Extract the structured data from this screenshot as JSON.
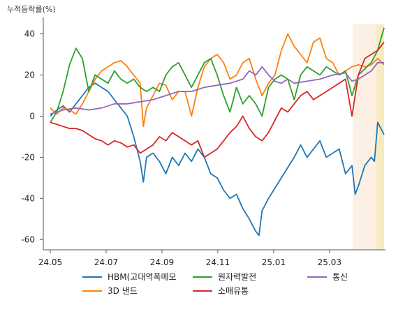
{
  "chart_data": {
    "type": "line",
    "ylabel": "누적등락률(%)",
    "ylim": [
      -65,
      48
    ],
    "yticks": [
      -60,
      -40,
      -20,
      0,
      20,
      40
    ],
    "xlim": [
      0,
      52
    ],
    "xticks": [
      {
        "label": "24.05",
        "x": 0
      },
      {
        "label": "24.07",
        "x": 8.7
      },
      {
        "label": "24.09",
        "x": 17.4
      },
      {
        "label": "24.11",
        "x": 26.1
      },
      {
        "label": "25.01",
        "x": 34.8
      },
      {
        "label": "25.03",
        "x": 43.5
      }
    ],
    "highlights": [
      {
        "from": 47.1,
        "to": 52.0,
        "color": "#f7e1c8",
        "opacity": 0.5
      },
      {
        "from": 50.8,
        "to": 52.0,
        "color": "#f3e7a6",
        "opacity": 0.55
      }
    ],
    "grid": false,
    "legend_position": "bottom",
    "series": [
      {
        "name": "HBM(고대역폭메모",
        "color": "#1f77b4",
        "points": [
          [
            0,
            0
          ],
          [
            1,
            3
          ],
          [
            2,
            5
          ],
          [
            3,
            2
          ],
          [
            4,
            6
          ],
          [
            5,
            10
          ],
          [
            6,
            14
          ],
          [
            7,
            16
          ],
          [
            8,
            14
          ],
          [
            9,
            12
          ],
          [
            10,
            8
          ],
          [
            11,
            4
          ],
          [
            12,
            0
          ],
          [
            13,
            -10
          ],
          [
            14,
            -22
          ],
          [
            14.5,
            -32
          ],
          [
            15,
            -20
          ],
          [
            16,
            -18
          ],
          [
            17,
            -22
          ],
          [
            18,
            -28
          ],
          [
            19,
            -20
          ],
          [
            20,
            -24
          ],
          [
            21,
            -18
          ],
          [
            22,
            -22
          ],
          [
            23,
            -16
          ],
          [
            24,
            -20
          ],
          [
            25,
            -28
          ],
          [
            26,
            -30
          ],
          [
            27,
            -36
          ],
          [
            28,
            -40
          ],
          [
            29,
            -38
          ],
          [
            30,
            -45
          ],
          [
            31,
            -50
          ],
          [
            32,
            -56
          ],
          [
            32.5,
            -58
          ],
          [
            33,
            -46
          ],
          [
            34,
            -40
          ],
          [
            35,
            -35
          ],
          [
            36,
            -30
          ],
          [
            37,
            -25
          ],
          [
            38,
            -20
          ],
          [
            39,
            -14
          ],
          [
            40,
            -20
          ],
          [
            41,
            -16
          ],
          [
            42,
            -12
          ],
          [
            43,
            -20
          ],
          [
            44,
            -18
          ],
          [
            45,
            -16
          ],
          [
            46,
            -28
          ],
          [
            47,
            -24
          ],
          [
            47.5,
            -38
          ],
          [
            48,
            -34
          ],
          [
            49,
            -24
          ],
          [
            50,
            -20
          ],
          [
            50.5,
            -22
          ],
          [
            51,
            -3
          ],
          [
            52,
            -9
          ]
        ]
      },
      {
        "name": "3D 낸드",
        "color": "#ff7f0e",
        "points": [
          [
            0,
            4
          ],
          [
            1,
            1
          ],
          [
            2,
            4
          ],
          [
            3,
            3
          ],
          [
            4,
            1
          ],
          [
            5,
            6
          ],
          [
            6,
            12
          ],
          [
            7,
            18
          ],
          [
            8,
            22
          ],
          [
            9,
            24
          ],
          [
            10,
            26
          ],
          [
            11,
            27
          ],
          [
            12,
            24
          ],
          [
            13,
            20
          ],
          [
            14,
            16
          ],
          [
            14.5,
            -5
          ],
          [
            15,
            4
          ],
          [
            16,
            10
          ],
          [
            17,
            16
          ],
          [
            18,
            15
          ],
          [
            19,
            8
          ],
          [
            20,
            12
          ],
          [
            21,
            12
          ],
          [
            22,
            0
          ],
          [
            23,
            14
          ],
          [
            24,
            24
          ],
          [
            25,
            28
          ],
          [
            26,
            30
          ],
          [
            27,
            26
          ],
          [
            28,
            18
          ],
          [
            29,
            20
          ],
          [
            30,
            26
          ],
          [
            31,
            28
          ],
          [
            32,
            18
          ],
          [
            33,
            10
          ],
          [
            34,
            16
          ],
          [
            35,
            20
          ],
          [
            36,
            32
          ],
          [
            37,
            40
          ],
          [
            38,
            34
          ],
          [
            39,
            30
          ],
          [
            40,
            26
          ],
          [
            41,
            36
          ],
          [
            42,
            38
          ],
          [
            43,
            28
          ],
          [
            44,
            26
          ],
          [
            45,
            20
          ],
          [
            46,
            22
          ],
          [
            47,
            24
          ],
          [
            48,
            25
          ],
          [
            49,
            24
          ],
          [
            50,
            25
          ],
          [
            51,
            28
          ],
          [
            52,
            25
          ]
        ]
      },
      {
        "name": "원자력발전",
        "color": "#2ca02c",
        "points": [
          [
            0,
            -3
          ],
          [
            1,
            2
          ],
          [
            2,
            12
          ],
          [
            3,
            25
          ],
          [
            4,
            33
          ],
          [
            5,
            28
          ],
          [
            6,
            12
          ],
          [
            7,
            20
          ],
          [
            8,
            18
          ],
          [
            9,
            16
          ],
          [
            10,
            22
          ],
          [
            11,
            18
          ],
          [
            12,
            16
          ],
          [
            13,
            18
          ],
          [
            14,
            14
          ],
          [
            15,
            12
          ],
          [
            16,
            14
          ],
          [
            17,
            12
          ],
          [
            18,
            20
          ],
          [
            19,
            24
          ],
          [
            20,
            26
          ],
          [
            21,
            20
          ],
          [
            22,
            14
          ],
          [
            23,
            20
          ],
          [
            24,
            26
          ],
          [
            25,
            28
          ],
          [
            26,
            20
          ],
          [
            27,
            10
          ],
          [
            28,
            2
          ],
          [
            29,
            14
          ],
          [
            30,
            6
          ],
          [
            31,
            10
          ],
          [
            32,
            6
          ],
          [
            33,
            0
          ],
          [
            34,
            14
          ],
          [
            35,
            18
          ],
          [
            36,
            20
          ],
          [
            37,
            18
          ],
          [
            38,
            8
          ],
          [
            39,
            20
          ],
          [
            40,
            24
          ],
          [
            41,
            22
          ],
          [
            42,
            20
          ],
          [
            43,
            24
          ],
          [
            44,
            22
          ],
          [
            45,
            20
          ],
          [
            46,
            22
          ],
          [
            47,
            10
          ],
          [
            48,
            20
          ],
          [
            49,
            23
          ],
          [
            50,
            26
          ],
          [
            51,
            32
          ],
          [
            52,
            43
          ]
        ]
      },
      {
        "name": "소매유통",
        "color": "#d62728",
        "points": [
          [
            0,
            -3
          ],
          [
            1,
            -4
          ],
          [
            2,
            -5
          ],
          [
            3,
            -6
          ],
          [
            4,
            -6
          ],
          [
            5,
            -7
          ],
          [
            6,
            -9
          ],
          [
            7,
            -11
          ],
          [
            8,
            -12
          ],
          [
            9,
            -14
          ],
          [
            10,
            -12
          ],
          [
            11,
            -13
          ],
          [
            12,
            -15
          ],
          [
            13,
            -14
          ],
          [
            14,
            -18
          ],
          [
            15,
            -16
          ],
          [
            16,
            -14
          ],
          [
            17,
            -10
          ],
          [
            18,
            -12
          ],
          [
            19,
            -8
          ],
          [
            20,
            -10
          ],
          [
            21,
            -12
          ],
          [
            22,
            -14
          ],
          [
            23,
            -12
          ],
          [
            24,
            -20
          ],
          [
            25,
            -18
          ],
          [
            26,
            -16
          ],
          [
            27,
            -12
          ],
          [
            28,
            -8
          ],
          [
            29,
            -5
          ],
          [
            30,
            0
          ],
          [
            31,
            -6
          ],
          [
            32,
            -10
          ],
          [
            33,
            -12
          ],
          [
            34,
            -8
          ],
          [
            35,
            -2
          ],
          [
            36,
            4
          ],
          [
            37,
            2
          ],
          [
            38,
            6
          ],
          [
            39,
            10
          ],
          [
            40,
            12
          ],
          [
            41,
            8
          ],
          [
            42,
            10
          ],
          [
            43,
            12
          ],
          [
            44,
            14
          ],
          [
            45,
            16
          ],
          [
            46,
            18
          ],
          [
            47,
            0
          ],
          [
            48,
            20
          ],
          [
            49,
            28
          ],
          [
            50,
            30
          ],
          [
            51,
            32
          ],
          [
            52,
            36
          ]
        ]
      },
      {
        "name": "통신",
        "color": "#9467bd",
        "points": [
          [
            0,
            1
          ],
          [
            2,
            3
          ],
          [
            4,
            4
          ],
          [
            6,
            3
          ],
          [
            8,
            4
          ],
          [
            10,
            6
          ],
          [
            12,
            6
          ],
          [
            14,
            7
          ],
          [
            16,
            8
          ],
          [
            18,
            10
          ],
          [
            20,
            12
          ],
          [
            22,
            12
          ],
          [
            24,
            14
          ],
          [
            26,
            15
          ],
          [
            28,
            16
          ],
          [
            30,
            18
          ],
          [
            31,
            22
          ],
          [
            32,
            20
          ],
          [
            33,
            24
          ],
          [
            34,
            20
          ],
          [
            35,
            17
          ],
          [
            36,
            16
          ],
          [
            37,
            18
          ],
          [
            38,
            16
          ],
          [
            40,
            17
          ],
          [
            42,
            18
          ],
          [
            44,
            20
          ],
          [
            46,
            21
          ],
          [
            47,
            17
          ],
          [
            48,
            18
          ],
          [
            49,
            20
          ],
          [
            50,
            22
          ],
          [
            51,
            26
          ],
          [
            52,
            26
          ]
        ]
      }
    ]
  }
}
